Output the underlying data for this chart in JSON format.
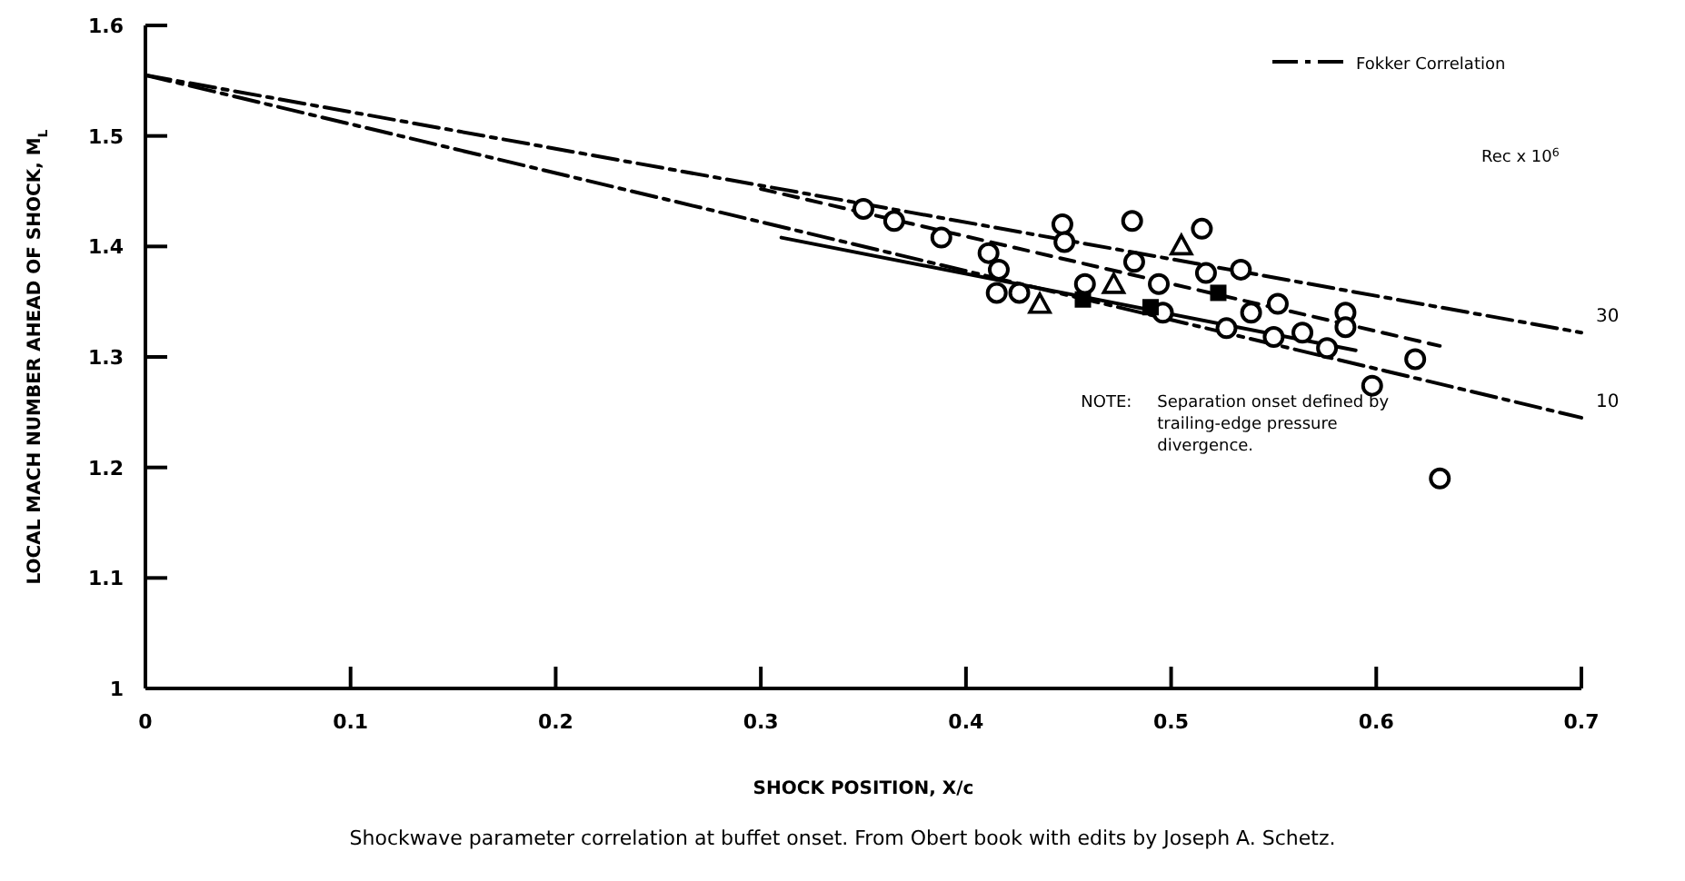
{
  "chart_data": {
    "type": "scatter",
    "xlabel": "SHOCK POSITION, X/c",
    "ylabel": "LOCAL MACH NUMBER AHEAD OF SHOCK, M$_{L}$",
    "xlim": [
      0,
      0.7
    ],
    "ylim": [
      1.0,
      1.6
    ],
    "xticks": [
      0,
      0.1,
      0.2,
      0.3,
      0.4,
      0.5,
      0.6,
      0.7
    ],
    "yticks": [
      1.0,
      1.1,
      1.2,
      1.3,
      1.4,
      1.5,
      1.6
    ],
    "legend": "top right",
    "grid": false,
    "series": [
      {
        "type": "line",
        "name": "Fokker Correlation",
        "color": "#000000",
        "line_style": "dashed",
        "x": [
          0,
          0.7
        ],
        "values": [
          1.555,
          1.322
        ]
      },
      {
        "type": "line",
        "color": "#000000",
        "line_style": "dashed",
        "x": [
          0,
          0.7
        ],
        "values": [
          1.555,
          1.245
        ]
      },
      {
        "type": "line",
        "color": "#000000",
        "line_style": "solid",
        "x": [
          0.31,
          0.59
        ],
        "values": [
          1.408,
          1.306
        ]
      },
      {
        "type": "line",
        "color": "#000000",
        "line_style": "dotted",
        "x": [
          0.3,
          0.631
        ],
        "values": [
          1.452,
          1.31
        ]
      },
      {
        "color": "#000000",
        "marker": "circle",
        "x": [
          0.35,
          0.365,
          0.388,
          0.411,
          0.416,
          0.415,
          0.426,
          0.447,
          0.448,
          0.458,
          0.481,
          0.515,
          0.482,
          0.494,
          0.496,
          0.517,
          0.534,
          0.539,
          0.552,
          0.527,
          0.55,
          0.564,
          0.576,
          0.585,
          0.585,
          0.619,
          0.598,
          0.631
        ],
        "values": [
          1.434,
          1.423,
          1.408,
          1.394,
          1.379,
          1.358,
          1.358,
          1.42,
          1.404,
          1.366,
          1.423,
          1.416,
          1.386,
          1.366,
          1.34,
          1.376,
          1.379,
          1.34,
          1.348,
          1.326,
          1.318,
          1.322,
          1.308,
          1.34,
          1.327,
          1.298,
          1.274,
          1.19
        ]
      },
      {
        "color": "#000000",
        "marker": "triangle",
        "x": [
          0.436,
          0.472,
          0.505
        ],
        "values": [
          1.347,
          1.365,
          1.4
        ]
      },
      {
        "color": "#000000",
        "marker": "square",
        "x": [
          0.457,
          0.49,
          0.523
        ],
        "values": [
          1.352,
          1.345,
          1.358
        ]
      }
    ],
    "annotations": [
      "Rec x 10$^{6}$",
      {
        "text": "30",
        "x": 0.7,
        "y": 1.322
      },
      {
        "text": "10",
        "x": 0.7,
        "y": 1.245
      },
      "NOTE:  Separation onset defined by trailing-edge pressure divergence.",
      "Shockwave parameter correlation at buffet onset. From Obert book with edits by Joseph A. Schetz."
    ]
  }
}
